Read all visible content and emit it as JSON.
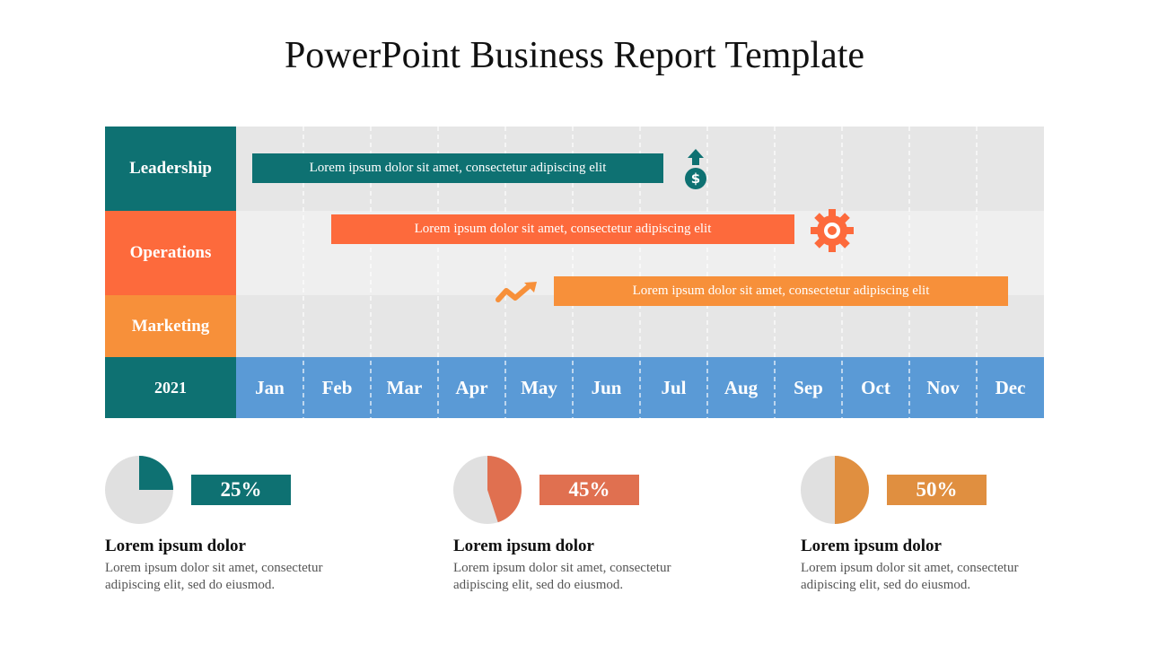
{
  "header": {
    "title": "PowerPoint Business Report Template"
  },
  "rows": [
    {
      "label": "Leadership",
      "task": "Lorem ipsum dolor sit amet, consectetur adipiscing elit"
    },
    {
      "label": "Operations",
      "task": "Lorem ipsum dolor sit amet, consectetur adipiscing elit"
    },
    {
      "label": "Marketing",
      "task": "Lorem ipsum dolor sit amet, consectetur adipiscing elit"
    }
  ],
  "year": "2021",
  "months": [
    "Jan",
    "Feb",
    "Mar",
    "Apr",
    "May",
    "Jun",
    "Jul",
    "Aug",
    "Sep",
    "Oct",
    "Nov",
    "Dec"
  ],
  "stats": [
    {
      "value": 25,
      "label": "25%",
      "color": "#0e7172",
      "heading": "Lorem ipsum dolor",
      "text": "Lorem ipsum dolor sit amet, consectetur adipiscing elit, sed do eiusmod."
    },
    {
      "value": 45,
      "label": "45%",
      "color": "#e07050",
      "heading": "Lorem ipsum dolor",
      "text": "Lorem ipsum dolor sit amet, consectetur adipiscing elit, sed do eiusmod."
    },
    {
      "value": 50,
      "label": "50%",
      "color": "#e08f40",
      "heading": "Lorem ipsum dolor",
      "text": "Lorem ipsum dolor sit amet, consectetur adipiscing elit, sed do eiusmod."
    }
  ]
}
